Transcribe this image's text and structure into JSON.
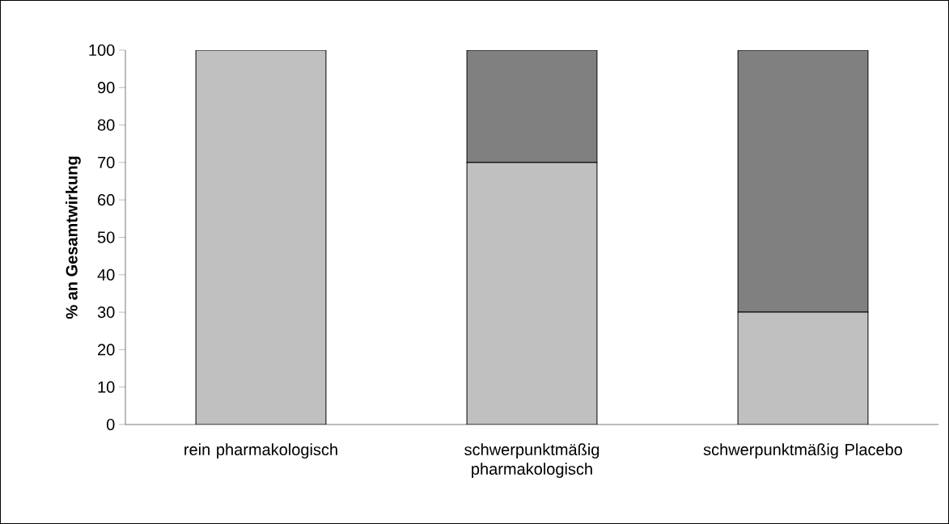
{
  "chart_data": {
    "type": "bar",
    "stacked": true,
    "ylabel": "% an Gesamtwirkung",
    "categories": [
      "rein pharmakologisch",
      "schwerpunktmäßig pharmakologisch",
      "schwerpunktmäßig Placebo"
    ],
    "series": [
      {
        "color": "#c0c0c0",
        "values": [
          100,
          70,
          30
        ]
      },
      {
        "color": "#808080",
        "values": [
          0,
          30,
          70
        ]
      }
    ],
    "ylim": [
      0,
      100
    ],
    "yticks": [
      0,
      10,
      20,
      30,
      40,
      50,
      60,
      70,
      80,
      90,
      100
    ]
  }
}
